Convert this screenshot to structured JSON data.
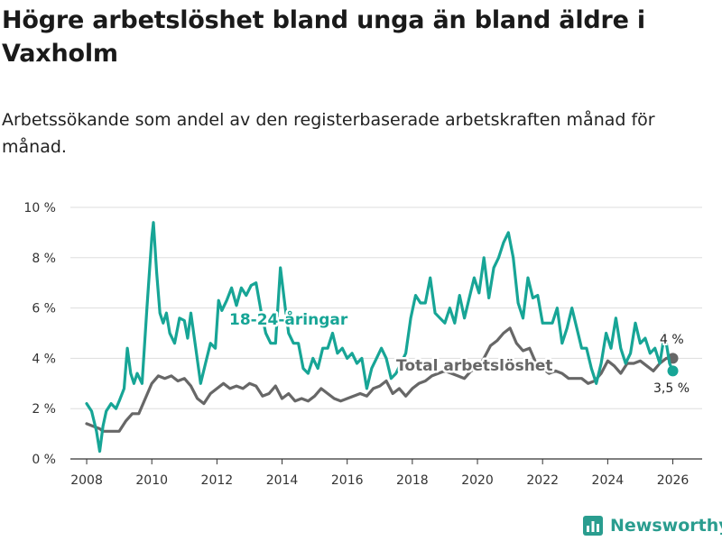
{
  "title": "Högre arbetslöshet bland unga än bland äldre i Vaxholm",
  "subtitle": "Arbetssökande som andel av den registerbaserade arbetskraften månad för månad.",
  "brand": {
    "name": "Newsworthy",
    "color": "#2a9d8f",
    "icon": "bar-chart-icon"
  },
  "chart_data": {
    "type": "line",
    "ylim": [
      0,
      10
    ],
    "xlim": [
      2007.5,
      2026.9
    ],
    "y_ticks": [
      0,
      2,
      4,
      6,
      8,
      10
    ],
    "y_tick_labels": [
      "0 %",
      "2 %",
      "4 %",
      "6 %",
      "8 %",
      "10 %"
    ],
    "x_ticks": [
      2008,
      2010,
      2012,
      2014,
      2016,
      2018,
      2020,
      2022,
      2024,
      2026
    ],
    "x_tick_labels": [
      "2008",
      "2010",
      "2012",
      "2014",
      "2016",
      "2018",
      "2020",
      "2022",
      "2024",
      "2026"
    ],
    "grid": "horizontal",
    "series": [
      {
        "name": "Total arbetslöshet",
        "color": "#676767",
        "end_label": "4 %",
        "points": [
          [
            2008.0,
            1.4
          ],
          [
            2008.2,
            1.3
          ],
          [
            2008.4,
            1.2
          ],
          [
            2008.5,
            1.1
          ],
          [
            2008.8,
            1.1
          ],
          [
            2009.0,
            1.1
          ],
          [
            2009.2,
            1.5
          ],
          [
            2009.4,
            1.8
          ],
          [
            2009.6,
            1.8
          ],
          [
            2009.8,
            2.4
          ],
          [
            2010.0,
            3.0
          ],
          [
            2010.2,
            3.3
          ],
          [
            2010.4,
            3.2
          ],
          [
            2010.6,
            3.3
          ],
          [
            2010.8,
            3.1
          ],
          [
            2011.0,
            3.2
          ],
          [
            2011.2,
            2.9
          ],
          [
            2011.4,
            2.4
          ],
          [
            2011.6,
            2.2
          ],
          [
            2011.8,
            2.6
          ],
          [
            2012.0,
            2.8
          ],
          [
            2012.2,
            3.0
          ],
          [
            2012.4,
            2.8
          ],
          [
            2012.6,
            2.9
          ],
          [
            2012.8,
            2.8
          ],
          [
            2013.0,
            3.0
          ],
          [
            2013.2,
            2.9
          ],
          [
            2013.4,
            2.5
          ],
          [
            2013.6,
            2.6
          ],
          [
            2013.8,
            2.9
          ],
          [
            2014.0,
            2.4
          ],
          [
            2014.2,
            2.6
          ],
          [
            2014.4,
            2.3
          ],
          [
            2014.6,
            2.4
          ],
          [
            2014.8,
            2.3
          ],
          [
            2015.0,
            2.5
          ],
          [
            2015.2,
            2.8
          ],
          [
            2015.4,
            2.6
          ],
          [
            2015.6,
            2.4
          ],
          [
            2015.8,
            2.3
          ],
          [
            2016.0,
            2.4
          ],
          [
            2016.2,
            2.5
          ],
          [
            2016.4,
            2.6
          ],
          [
            2016.6,
            2.5
          ],
          [
            2016.8,
            2.8
          ],
          [
            2017.0,
            2.9
          ],
          [
            2017.2,
            3.1
          ],
          [
            2017.4,
            2.6
          ],
          [
            2017.6,
            2.8
          ],
          [
            2017.8,
            2.5
          ],
          [
            2018.0,
            2.8
          ],
          [
            2018.2,
            3.0
          ],
          [
            2018.4,
            3.1
          ],
          [
            2018.6,
            3.3
          ],
          [
            2018.8,
            3.4
          ],
          [
            2019.0,
            3.5
          ],
          [
            2019.2,
            3.4
          ],
          [
            2019.4,
            3.3
          ],
          [
            2019.6,
            3.2
          ],
          [
            2019.8,
            3.5
          ],
          [
            2020.0,
            3.6
          ],
          [
            2020.2,
            4.0
          ],
          [
            2020.4,
            4.5
          ],
          [
            2020.6,
            4.7
          ],
          [
            2020.8,
            5.0
          ],
          [
            2021.0,
            5.2
          ],
          [
            2021.2,
            4.6
          ],
          [
            2021.4,
            4.3
          ],
          [
            2021.6,
            4.4
          ],
          [
            2021.8,
            3.8
          ],
          [
            2022.0,
            3.6
          ],
          [
            2022.2,
            3.4
          ],
          [
            2022.4,
            3.5
          ],
          [
            2022.6,
            3.4
          ],
          [
            2022.8,
            3.2
          ],
          [
            2023.0,
            3.2
          ],
          [
            2023.2,
            3.2
          ],
          [
            2023.4,
            3.0
          ],
          [
            2023.6,
            3.1
          ],
          [
            2023.8,
            3.4
          ],
          [
            2024.0,
            3.9
          ],
          [
            2024.2,
            3.7
          ],
          [
            2024.4,
            3.4
          ],
          [
            2024.6,
            3.8
          ],
          [
            2024.8,
            3.8
          ],
          [
            2025.0,
            3.9
          ],
          [
            2025.2,
            3.7
          ],
          [
            2025.4,
            3.5
          ],
          [
            2025.6,
            3.8
          ],
          [
            2025.8,
            4.0
          ],
          [
            2026.0,
            4.0
          ]
        ]
      },
      {
        "name": "18-24-åringar",
        "color": "#17a596",
        "end_label": "3,5 %",
        "points": [
          [
            2008.0,
            2.2
          ],
          [
            2008.15,
            1.9
          ],
          [
            2008.3,
            1.1
          ],
          [
            2008.4,
            0.3
          ],
          [
            2008.5,
            1.3
          ],
          [
            2008.6,
            1.9
          ],
          [
            2008.75,
            2.2
          ],
          [
            2008.9,
            2.0
          ],
          [
            2009.0,
            2.3
          ],
          [
            2009.15,
            2.8
          ],
          [
            2009.25,
            4.4
          ],
          [
            2009.35,
            3.4
          ],
          [
            2009.45,
            3.0
          ],
          [
            2009.55,
            3.4
          ],
          [
            2009.7,
            3.0
          ],
          [
            2009.85,
            6.0
          ],
          [
            2010.0,
            8.8
          ],
          [
            2010.05,
            9.4
          ],
          [
            2010.15,
            7.4
          ],
          [
            2010.25,
            5.8
          ],
          [
            2010.35,
            5.4
          ],
          [
            2010.45,
            5.8
          ],
          [
            2010.55,
            5.0
          ],
          [
            2010.7,
            4.6
          ],
          [
            2010.85,
            5.6
          ],
          [
            2011.0,
            5.5
          ],
          [
            2011.1,
            4.8
          ],
          [
            2011.2,
            5.8
          ],
          [
            2011.35,
            4.4
          ],
          [
            2011.5,
            3.0
          ],
          [
            2011.65,
            3.8
          ],
          [
            2011.8,
            4.6
          ],
          [
            2011.95,
            4.4
          ],
          [
            2012.05,
            6.3
          ],
          [
            2012.15,
            5.9
          ],
          [
            2012.3,
            6.3
          ],
          [
            2012.45,
            6.8
          ],
          [
            2012.6,
            6.1
          ],
          [
            2012.75,
            6.8
          ],
          [
            2012.9,
            6.5
          ],
          [
            2013.05,
            6.9
          ],
          [
            2013.2,
            7.0
          ],
          [
            2013.35,
            5.9
          ],
          [
            2013.5,
            5.0
          ],
          [
            2013.65,
            4.6
          ],
          [
            2013.8,
            4.6
          ],
          [
            2013.95,
            7.6
          ],
          [
            2014.1,
            6.0
          ],
          [
            2014.2,
            5.0
          ],
          [
            2014.35,
            4.6
          ],
          [
            2014.5,
            4.6
          ],
          [
            2014.65,
            3.6
          ],
          [
            2014.8,
            3.4
          ],
          [
            2014.95,
            4.0
          ],
          [
            2015.1,
            3.6
          ],
          [
            2015.25,
            4.4
          ],
          [
            2015.4,
            4.4
          ],
          [
            2015.55,
            5.0
          ],
          [
            2015.7,
            4.2
          ],
          [
            2015.85,
            4.4
          ],
          [
            2016.0,
            4.0
          ],
          [
            2016.15,
            4.2
          ],
          [
            2016.3,
            3.8
          ],
          [
            2016.45,
            4.0
          ],
          [
            2016.6,
            2.8
          ],
          [
            2016.75,
            3.6
          ],
          [
            2016.9,
            4.0
          ],
          [
            2017.05,
            4.4
          ],
          [
            2017.2,
            4.0
          ],
          [
            2017.35,
            3.2
          ],
          [
            2017.5,
            3.4
          ],
          [
            2017.65,
            3.8
          ],
          [
            2017.8,
            4.2
          ],
          [
            2017.95,
            5.6
          ],
          [
            2018.1,
            6.5
          ],
          [
            2018.25,
            6.2
          ],
          [
            2018.4,
            6.2
          ],
          [
            2018.55,
            7.2
          ],
          [
            2018.7,
            5.8
          ],
          [
            2018.85,
            5.6
          ],
          [
            2019.0,
            5.4
          ],
          [
            2019.15,
            6.0
          ],
          [
            2019.3,
            5.4
          ],
          [
            2019.45,
            6.5
          ],
          [
            2019.6,
            5.6
          ],
          [
            2019.75,
            6.4
          ],
          [
            2019.9,
            7.2
          ],
          [
            2020.05,
            6.6
          ],
          [
            2020.2,
            8.0
          ],
          [
            2020.35,
            6.4
          ],
          [
            2020.5,
            7.6
          ],
          [
            2020.65,
            8.0
          ],
          [
            2020.8,
            8.6
          ],
          [
            2020.95,
            9.0
          ],
          [
            2021.1,
            8.0
          ],
          [
            2021.25,
            6.2
          ],
          [
            2021.4,
            5.6
          ],
          [
            2021.55,
            7.2
          ],
          [
            2021.7,
            6.4
          ],
          [
            2021.85,
            6.5
          ],
          [
            2022.0,
            5.4
          ],
          [
            2022.15,
            5.4
          ],
          [
            2022.3,
            5.4
          ],
          [
            2022.45,
            6.0
          ],
          [
            2022.6,
            4.6
          ],
          [
            2022.75,
            5.2
          ],
          [
            2022.9,
            6.0
          ],
          [
            2023.05,
            5.2
          ],
          [
            2023.2,
            4.4
          ],
          [
            2023.35,
            4.4
          ],
          [
            2023.5,
            3.6
          ],
          [
            2023.65,
            3.0
          ],
          [
            2023.8,
            3.8
          ],
          [
            2023.95,
            5.0
          ],
          [
            2024.1,
            4.4
          ],
          [
            2024.25,
            5.6
          ],
          [
            2024.4,
            4.4
          ],
          [
            2024.55,
            3.8
          ],
          [
            2024.7,
            4.2
          ],
          [
            2024.85,
            5.4
          ],
          [
            2025.0,
            4.6
          ],
          [
            2025.15,
            4.8
          ],
          [
            2025.3,
            4.2
          ],
          [
            2025.45,
            4.4
          ],
          [
            2025.6,
            3.8
          ],
          [
            2025.75,
            5.0
          ],
          [
            2025.9,
            3.8
          ],
          [
            2026.0,
            3.5
          ]
        ]
      }
    ]
  }
}
